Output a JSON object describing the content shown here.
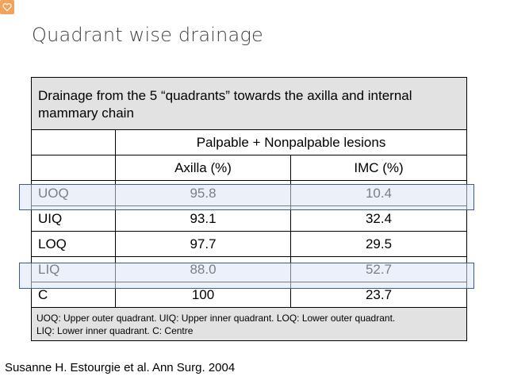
{
  "title": "Quadrant wise drainage",
  "table": {
    "header": "Drainage from the 5 “quadrants” towards the axilla and internal mammary chain",
    "group_header": "Palpable + Nonpalpable lesions",
    "columns": [
      "Axilla (%)",
      "IMC (%)"
    ],
    "rows": [
      {
        "quadrant": "UOQ",
        "axilla": "95.8",
        "imc": "10.4",
        "highlighted": true
      },
      {
        "quadrant": "UIQ",
        "axilla": "93.1",
        "imc": "32.4",
        "highlighted": false
      },
      {
        "quadrant": "LOQ",
        "axilla": "97.7",
        "imc": "29.5",
        "highlighted": false
      },
      {
        "quadrant": "LIQ",
        "axilla": "88.0",
        "imc": "52.7",
        "highlighted": true
      },
      {
        "quadrant": "C",
        "axilla": "100",
        "imc": "23.7",
        "highlighted": false
      }
    ],
    "footnote_line1": "UOQ: Upper outer quadrant. UIQ: Upper inner quadrant. LOQ: Lower outer quadrant.",
    "footnote_line2": "LIQ: Lower inner quadrant. C: Centre"
  },
  "citation": "Susanne H. Estourgie et al. Ann Surg. 2004",
  "colors": {
    "highlight_border": "#3a5a9a",
    "header_fill": "#e2e2e2",
    "logo": "#f2a25a"
  },
  "icons": {
    "corner_logo": "heart-check-icon"
  }
}
